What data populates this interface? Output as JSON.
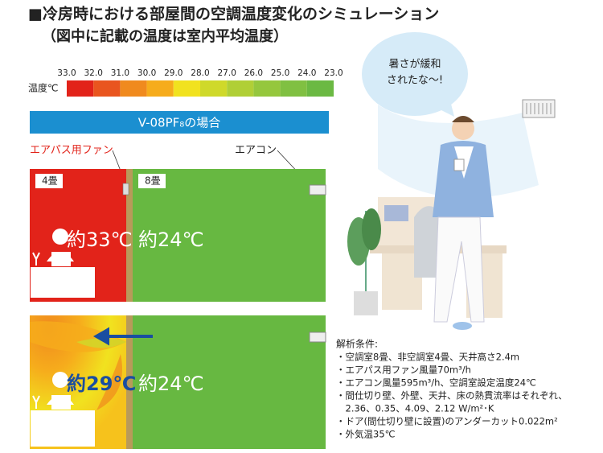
{
  "header": {
    "title": "■冷房時における部屋間の空調温度変化のシミュレーション",
    "subtitle": "（図中に記載の温度は室内平均温度）"
  },
  "legend": {
    "unit_label": "温度℃",
    "ticks": [
      "33.0",
      "32.0",
      "31.0",
      "30.0",
      "29.0",
      "28.0",
      "27.0",
      "26.0",
      "25.0",
      "24.0",
      "23.0"
    ],
    "colors": [
      "#e2231a",
      "#e9551f",
      "#f08a1e",
      "#f6ac1c",
      "#f1e21f",
      "#cfd92a",
      "#b0cf36",
      "#95c73d",
      "#80c042",
      "#6bb943"
    ]
  },
  "banner": "V-08PF₈の場合",
  "labels": {
    "fan": "エアパス用ファン",
    "aircon": "エアコン"
  },
  "scenarios": [
    {
      "rooms": [
        {
          "name": "4畳",
          "temp_label": "約33℃"
        },
        {
          "name": "8畳",
          "temp_label": "約24℃"
        }
      ]
    },
    {
      "rooms": [
        {
          "temp_label": "約29℃"
        },
        {
          "temp_label": "約24℃"
        }
      ]
    }
  ],
  "speech": [
    "暑さが緩和",
    "されたな～!"
  ],
  "conditions": {
    "title": "解析条件:",
    "lines": [
      "・空調室8畳、非空調室4畳、天井高さ2.4m",
      "・エアパス用ファン風量70m³/h",
      "・エアコン風量595m³/h、空調室設定温度24℃",
      "・間仕切り壁、外壁、天井、床の熱貫流率はそれぞれ、",
      "　2.36、0.35、4.09、2.12 W/m²･K",
      "・ドア(間仕切り壁に設置)のアンダーカット0.022m²",
      "・外気温35℃"
    ]
  }
}
